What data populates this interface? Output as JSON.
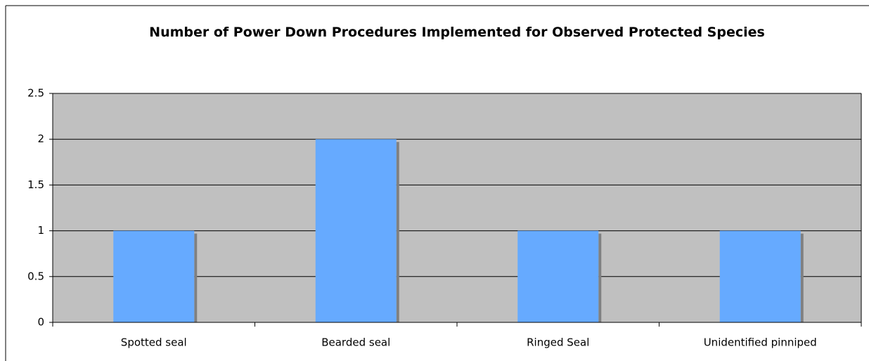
{
  "chart_data": {
    "type": "bar",
    "title": "Number of Power Down Procedures Implemented for Observed Protected Species",
    "categories": [
      "Spotted seal",
      "Bearded seal",
      "Ringed Seal",
      "Unidentified pinniped"
    ],
    "values": [
      1,
      2,
      1,
      1
    ],
    "color": "#66aaff",
    "ylim": [
      0,
      2.5
    ],
    "yticks": [
      0,
      0.5,
      1,
      1.5,
      2,
      2.5
    ],
    "grid": true
  }
}
